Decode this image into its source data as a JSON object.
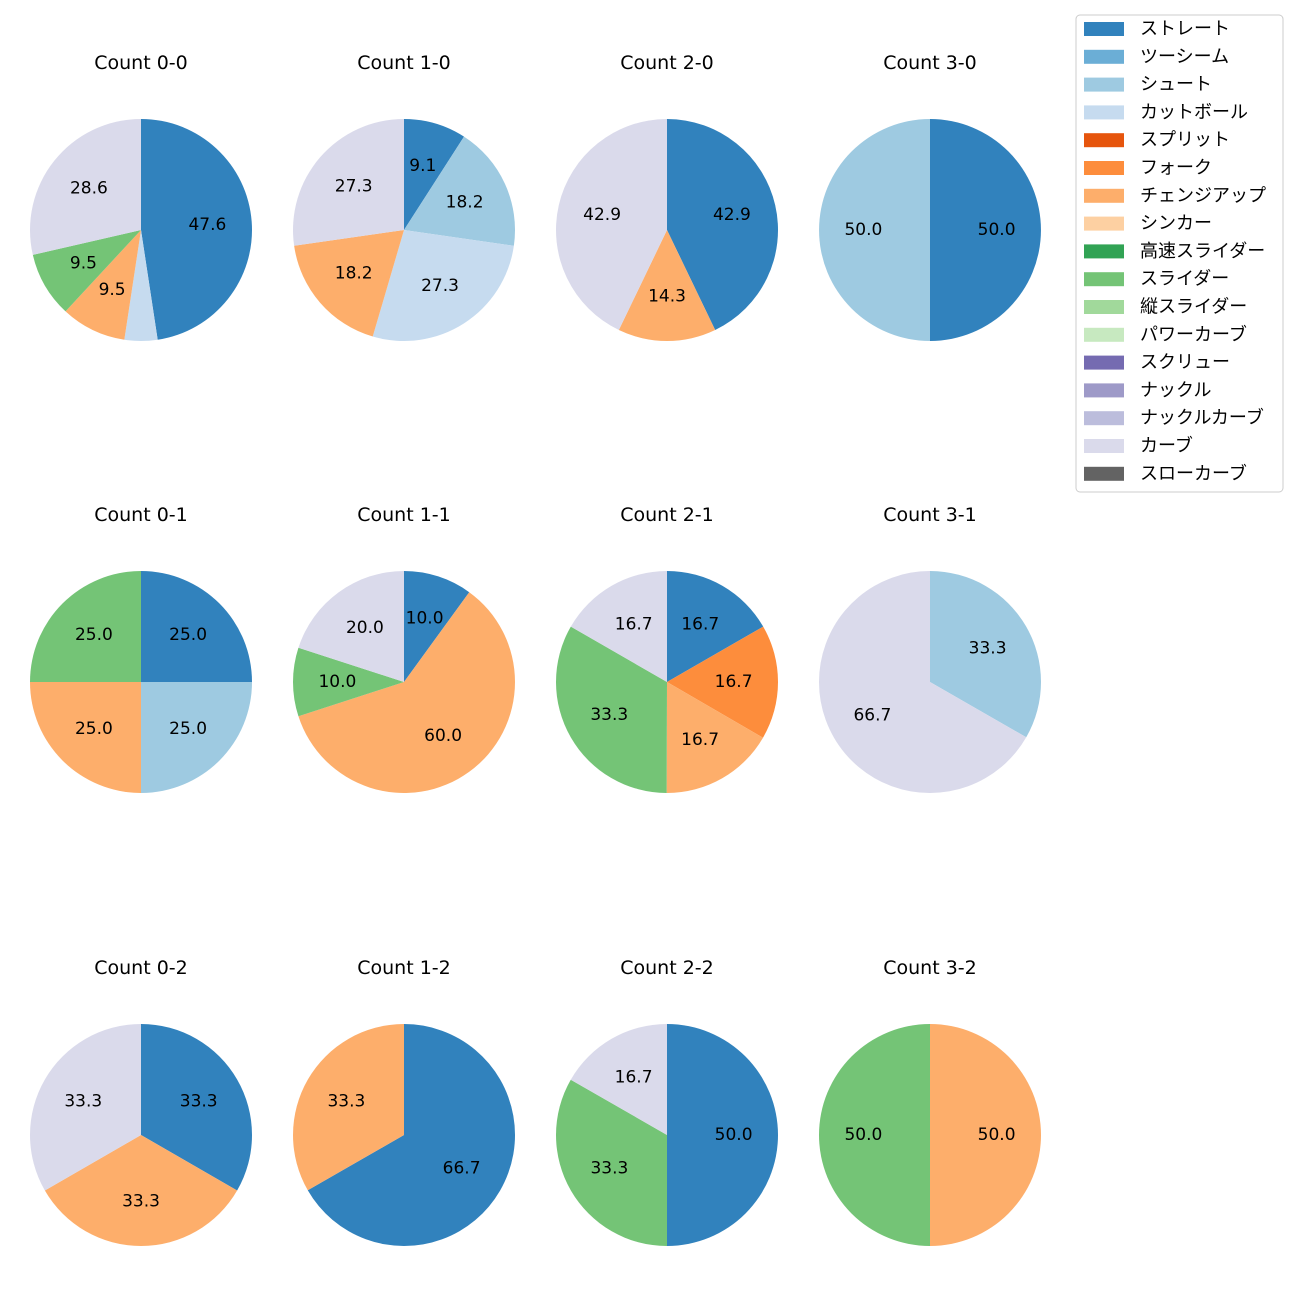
{
  "legend": [
    {
      "name": "ストレート",
      "color": "#3182bd"
    },
    {
      "name": "ツーシーム",
      "color": "#6baed6"
    },
    {
      "name": "シュート",
      "color": "#9ecae1"
    },
    {
      "name": "カットボール",
      "color": "#c6dbef"
    },
    {
      "name": "スプリット",
      "color": "#e6550d"
    },
    {
      "name": "フォーク",
      "color": "#fd8d3c"
    },
    {
      "name": "チェンジアップ",
      "color": "#fdae6b"
    },
    {
      "name": "シンカー",
      "color": "#fdd0a2"
    },
    {
      "name": "高速スライダー",
      "color": "#31a354"
    },
    {
      "name": "スライダー",
      "color": "#74c476"
    },
    {
      "name": "縦スライダー",
      "color": "#a1d99b"
    },
    {
      "name": "パワーカーブ",
      "color": "#c7e9c0"
    },
    {
      "name": "スクリュー",
      "color": "#756bb1"
    },
    {
      "name": "ナックル",
      "color": "#9e9ac8"
    },
    {
      "name": "ナックルカーブ",
      "color": "#bcbddc"
    },
    {
      "name": "カーブ",
      "color": "#dadaeb"
    },
    {
      "name": "スローカーブ",
      "color": "#636363"
    }
  ],
  "chart_data": [
    {
      "type": "pie",
      "title": "Count 0-0",
      "slices": [
        {
          "pitch": "ストレート",
          "value": 47.6,
          "label": "47.6"
        },
        {
          "pitch": "カットボール",
          "value": 4.8,
          "label": ""
        },
        {
          "pitch": "チェンジアップ",
          "value": 9.5,
          "label": "9.5"
        },
        {
          "pitch": "スライダー",
          "value": 9.5,
          "label": "9.5"
        },
        {
          "pitch": "カーブ",
          "value": 28.6,
          "label": "28.6"
        }
      ]
    },
    {
      "type": "pie",
      "title": "Count 1-0",
      "slices": [
        {
          "pitch": "ストレート",
          "value": 9.1,
          "label": "9.1"
        },
        {
          "pitch": "シュート",
          "value": 18.2,
          "label": "18.2"
        },
        {
          "pitch": "カットボール",
          "value": 27.3,
          "label": "27.3"
        },
        {
          "pitch": "チェンジアップ",
          "value": 18.2,
          "label": "18.2"
        },
        {
          "pitch": "カーブ",
          "value": 27.3,
          "label": "27.3"
        }
      ]
    },
    {
      "type": "pie",
      "title": "Count 2-0",
      "slices": [
        {
          "pitch": "ストレート",
          "value": 42.9,
          "label": "42.9"
        },
        {
          "pitch": "チェンジアップ",
          "value": 14.3,
          "label": "14.3"
        },
        {
          "pitch": "カーブ",
          "value": 42.9,
          "label": "42.9"
        }
      ]
    },
    {
      "type": "pie",
      "title": "Count 3-0",
      "slices": [
        {
          "pitch": "ストレート",
          "value": 50.0,
          "label": "50.0"
        },
        {
          "pitch": "シュート",
          "value": 50.0,
          "label": "50.0"
        }
      ]
    },
    {
      "type": "pie",
      "title": "Count 0-1",
      "slices": [
        {
          "pitch": "ストレート",
          "value": 25.0,
          "label": "25.0"
        },
        {
          "pitch": "シュート",
          "value": 25.0,
          "label": "25.0"
        },
        {
          "pitch": "チェンジアップ",
          "value": 25.0,
          "label": "25.0"
        },
        {
          "pitch": "スライダー",
          "value": 25.0,
          "label": "25.0"
        }
      ]
    },
    {
      "type": "pie",
      "title": "Count 1-1",
      "slices": [
        {
          "pitch": "ストレート",
          "value": 10.0,
          "label": "10.0"
        },
        {
          "pitch": "チェンジアップ",
          "value": 60.0,
          "label": "60.0"
        },
        {
          "pitch": "スライダー",
          "value": 10.0,
          "label": "10.0"
        },
        {
          "pitch": "カーブ",
          "value": 20.0,
          "label": "20.0"
        }
      ]
    },
    {
      "type": "pie",
      "title": "Count 2-1",
      "slices": [
        {
          "pitch": "ストレート",
          "value": 16.7,
          "label": "16.7"
        },
        {
          "pitch": "フォーク",
          "value": 16.7,
          "label": "16.7"
        },
        {
          "pitch": "チェンジアップ",
          "value": 16.7,
          "label": "16.7"
        },
        {
          "pitch": "スライダー",
          "value": 33.3,
          "label": "33.3"
        },
        {
          "pitch": "カーブ",
          "value": 16.7,
          "label": "16.7"
        }
      ]
    },
    {
      "type": "pie",
      "title": "Count 3-1",
      "slices": [
        {
          "pitch": "シュート",
          "value": 33.3,
          "label": "33.3"
        },
        {
          "pitch": "カーブ",
          "value": 66.7,
          "label": "66.7"
        }
      ]
    },
    {
      "type": "pie",
      "title": "Count 0-2",
      "slices": [
        {
          "pitch": "ストレート",
          "value": 33.3,
          "label": "33.3"
        },
        {
          "pitch": "チェンジアップ",
          "value": 33.3,
          "label": "33.3"
        },
        {
          "pitch": "カーブ",
          "value": 33.3,
          "label": "33.3"
        }
      ]
    },
    {
      "type": "pie",
      "title": "Count 1-2",
      "slices": [
        {
          "pitch": "ストレート",
          "value": 66.7,
          "label": "66.7"
        },
        {
          "pitch": "チェンジアップ",
          "value": 33.3,
          "label": "33.3"
        }
      ]
    },
    {
      "type": "pie",
      "title": "Count 2-2",
      "slices": [
        {
          "pitch": "ストレート",
          "value": 50.0,
          "label": "50.0"
        },
        {
          "pitch": "スライダー",
          "value": 33.3,
          "label": "33.3"
        },
        {
          "pitch": "カーブ",
          "value": 16.7,
          "label": "16.7"
        }
      ]
    },
    {
      "type": "pie",
      "title": "Count 3-2",
      "slices": [
        {
          "pitch": "チェンジアップ",
          "value": 50.0,
          "label": "50.0"
        },
        {
          "pitch": "スライダー",
          "value": 50.0,
          "label": "50.0"
        }
      ]
    }
  ]
}
